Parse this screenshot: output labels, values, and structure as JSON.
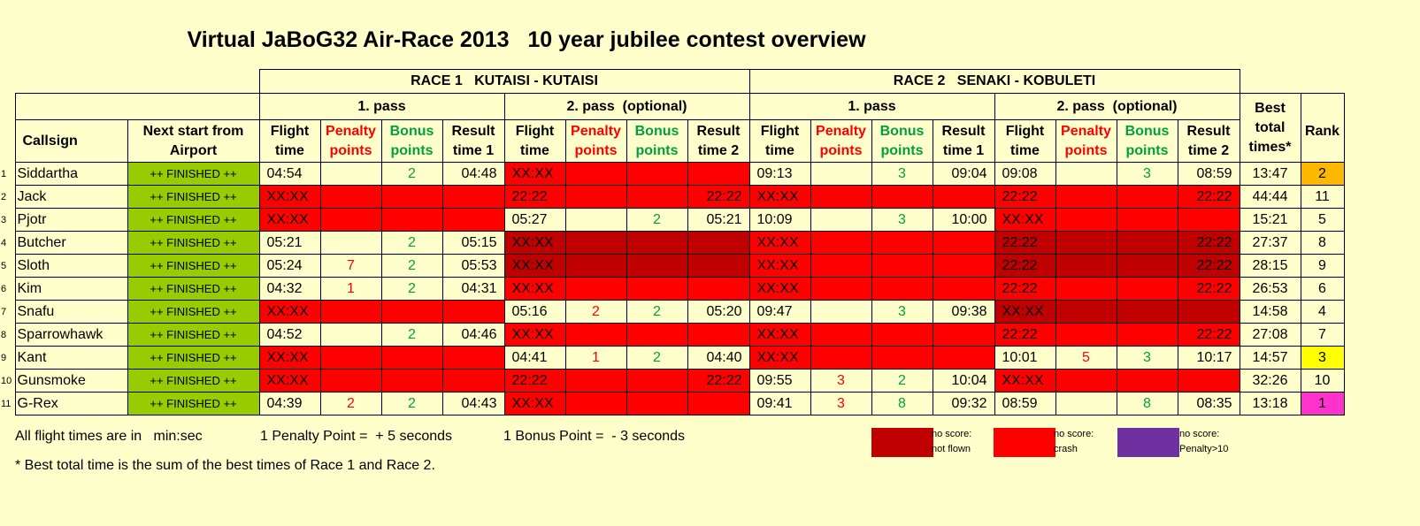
{
  "title": "Virtual JaBoG32 Air-Race 2013   10 year jubilee contest overview",
  "races": [
    {
      "label": "RACE 1   KUTAISI - KUTAISI",
      "pass1": "1. pass",
      "pass2": "2. pass  (optional)"
    },
    {
      "label": "RACE 2   SENAKI - KOBULETI",
      "pass1": "1. pass",
      "pass2": "2. pass  (optional)"
    }
  ],
  "columns": {
    "callsign": "Callsign",
    "next_start_1": "Next start from",
    "next_start_2": "Airport",
    "flight_1": "Flight",
    "flight_2": "time",
    "penalty_1": "Penalty",
    "penalty_2": "points",
    "bonus_1": "Bonus",
    "bonus_2": "points",
    "result1_1": "Result",
    "result1_2": "time 1",
    "result2_1": "Result",
    "result2_2": "time 2",
    "best_1": "Best",
    "best_2": "total",
    "best_3": "times*",
    "rank": "Rank"
  },
  "colors": {
    "background": "#FFFFCC",
    "finished": "#99CC00",
    "crash": "#FF0000",
    "not_flown": "#C00000",
    "penalty_over_10": "#7030A0",
    "rank_gold": "#FFB800",
    "rank_yellow": "#FFFF00",
    "rank_magenta": "#FF33CC"
  },
  "rows": [
    {
      "n": "1",
      "callsign": "Siddartha",
      "next": "++ FINISHED ++",
      "cells": [
        [
          "04:54",
          ""
        ],
        [
          "",
          ""
        ],
        [
          "2",
          ""
        ],
        [
          "04:48",
          ""
        ],
        [
          "XX:XX",
          "crash"
        ],
        [
          "",
          "crash"
        ],
        [
          "",
          "crash"
        ],
        [
          "",
          "crash"
        ],
        [
          "09:13",
          ""
        ],
        [
          "",
          ""
        ],
        [
          "3",
          ""
        ],
        [
          "09:04",
          ""
        ],
        [
          "09:08",
          ""
        ],
        [
          "",
          ""
        ],
        [
          "3",
          ""
        ],
        [
          "08:59",
          ""
        ]
      ],
      "best": "13:47",
      "rank": "2",
      "rank_style": "rk-gold"
    },
    {
      "n": "2",
      "callsign": "Jack",
      "next": "++ FINISHED ++",
      "cells": [
        [
          "XX:XX",
          "crash"
        ],
        [
          "",
          "crash"
        ],
        [
          "",
          "crash"
        ],
        [
          "",
          "crash"
        ],
        [
          "22:22",
          "crash"
        ],
        [
          "",
          "crash"
        ],
        [
          "",
          "crash"
        ],
        [
          "22:22",
          "crash"
        ],
        [
          "XX:XX",
          "crash"
        ],
        [
          "",
          "crash"
        ],
        [
          "",
          "crash"
        ],
        [
          "",
          "crash"
        ],
        [
          "22:22",
          "crash"
        ],
        [
          "",
          "crash"
        ],
        [
          "",
          "crash"
        ],
        [
          "22:22",
          "crash"
        ]
      ],
      "best": "44:44",
      "rank": "11",
      "rank_style": ""
    },
    {
      "n": "3",
      "callsign": "Pjotr",
      "next": "++ FINISHED ++",
      "cells": [
        [
          "XX:XX",
          "crash"
        ],
        [
          "",
          "crash"
        ],
        [
          "",
          "crash"
        ],
        [
          "",
          "crash"
        ],
        [
          "05:27",
          ""
        ],
        [
          "",
          ""
        ],
        [
          "2",
          ""
        ],
        [
          "05:21",
          ""
        ],
        [
          "10:09",
          ""
        ],
        [
          "",
          ""
        ],
        [
          "3",
          ""
        ],
        [
          "10:00",
          ""
        ],
        [
          "XX:XX",
          "crash"
        ],
        [
          "",
          "crash"
        ],
        [
          "",
          "crash"
        ],
        [
          "",
          "crash"
        ]
      ],
      "best": "15:21",
      "rank": "5",
      "rank_style": ""
    },
    {
      "n": "4",
      "callsign": "Butcher",
      "next": "++ FINISHED ++",
      "cells": [
        [
          "05:21",
          ""
        ],
        [
          "",
          ""
        ],
        [
          "2",
          ""
        ],
        [
          "05:15",
          ""
        ],
        [
          "XX:XX",
          "nf"
        ],
        [
          "",
          "nf"
        ],
        [
          "",
          "nf"
        ],
        [
          "",
          "nf"
        ],
        [
          "XX:XX",
          "crash"
        ],
        [
          "",
          "crash"
        ],
        [
          "",
          "crash"
        ],
        [
          "",
          "crash"
        ],
        [
          "22:22",
          "nf"
        ],
        [
          "",
          "nf"
        ],
        [
          "",
          "nf"
        ],
        [
          "22:22",
          "nf"
        ]
      ],
      "best": "27:37",
      "rank": "8",
      "rank_style": ""
    },
    {
      "n": "5",
      "callsign": "Sloth",
      "next": "++ FINISHED ++",
      "cells": [
        [
          "05:24",
          ""
        ],
        [
          "7",
          ""
        ],
        [
          "2",
          ""
        ],
        [
          "05:53",
          ""
        ],
        [
          "XX:XX",
          "nf"
        ],
        [
          "",
          "nf"
        ],
        [
          "",
          "nf"
        ],
        [
          "",
          "nf"
        ],
        [
          "XX:XX",
          "crash"
        ],
        [
          "",
          "crash"
        ],
        [
          "",
          "crash"
        ],
        [
          "",
          "crash"
        ],
        [
          "22:22",
          "nf"
        ],
        [
          "",
          "nf"
        ],
        [
          "",
          "nf"
        ],
        [
          "22:22",
          "nf"
        ]
      ],
      "best": "28:15",
      "rank": "9",
      "rank_style": ""
    },
    {
      "n": "6",
      "callsign": "Kim",
      "next": "++ FINISHED ++",
      "cells": [
        [
          "04:32",
          ""
        ],
        [
          "1",
          ""
        ],
        [
          "2",
          ""
        ],
        [
          "04:31",
          ""
        ],
        [
          "XX:XX",
          "crash"
        ],
        [
          "",
          "crash"
        ],
        [
          "",
          "crash"
        ],
        [
          "",
          "crash"
        ],
        [
          "XX:XX",
          "crash"
        ],
        [
          "",
          "crash"
        ],
        [
          "",
          "crash"
        ],
        [
          "",
          "crash"
        ],
        [
          "22:22",
          "crash"
        ],
        [
          "",
          "crash"
        ],
        [
          "",
          "crash"
        ],
        [
          "22:22",
          "crash"
        ]
      ],
      "best": "26:53",
      "rank": "6",
      "rank_style": ""
    },
    {
      "n": "7",
      "callsign": "Snafu",
      "next": "++ FINISHED ++",
      "cells": [
        [
          "XX:XX",
          "crash"
        ],
        [
          "",
          "crash"
        ],
        [
          "",
          "crash"
        ],
        [
          "",
          "crash"
        ],
        [
          "05:16",
          ""
        ],
        [
          "2",
          ""
        ],
        [
          "2",
          ""
        ],
        [
          "05:20",
          ""
        ],
        [
          "09:47",
          ""
        ],
        [
          "",
          ""
        ],
        [
          "3",
          ""
        ],
        [
          "09:38",
          ""
        ],
        [
          "XX:XX",
          "nf"
        ],
        [
          "",
          "nf"
        ],
        [
          "",
          "nf"
        ],
        [
          "",
          "nf"
        ]
      ],
      "best": "14:58",
      "rank": "4",
      "rank_style": ""
    },
    {
      "n": "8",
      "callsign": "Sparrowhawk",
      "next": "++ FINISHED ++",
      "cells": [
        [
          "04:52",
          ""
        ],
        [
          "",
          ""
        ],
        [
          "2",
          ""
        ],
        [
          "04:46",
          ""
        ],
        [
          "XX:XX",
          "crash"
        ],
        [
          "",
          "crash"
        ],
        [
          "",
          "crash"
        ],
        [
          "",
          "crash"
        ],
        [
          "XX:XX",
          "crash"
        ],
        [
          "",
          "crash"
        ],
        [
          "",
          "crash"
        ],
        [
          "",
          "crash"
        ],
        [
          "22:22",
          "crash"
        ],
        [
          "",
          "crash"
        ],
        [
          "",
          "crash"
        ],
        [
          "22:22",
          "crash"
        ]
      ],
      "best": "27:08",
      "rank": "7",
      "rank_style": ""
    },
    {
      "n": "9",
      "callsign": "Kant",
      "next": "++ FINISHED ++",
      "cells": [
        [
          "XX:XX",
          "crash"
        ],
        [
          "",
          "crash"
        ],
        [
          "",
          "crash"
        ],
        [
          "",
          "crash"
        ],
        [
          "04:41",
          ""
        ],
        [
          "1",
          ""
        ],
        [
          "2",
          ""
        ],
        [
          "04:40",
          ""
        ],
        [
          "XX:XX",
          "crash"
        ],
        [
          "",
          "crash"
        ],
        [
          "",
          "crash"
        ],
        [
          "",
          "crash"
        ],
        [
          "10:01",
          ""
        ],
        [
          "5",
          ""
        ],
        [
          "3",
          ""
        ],
        [
          "10:17",
          ""
        ]
      ],
      "best": "14:57",
      "rank": "3",
      "rank_style": "rk-yel"
    },
    {
      "n": "10",
      "callsign": "Gunsmoke",
      "next": "++ FINISHED ++",
      "cells": [
        [
          "XX:XX",
          "crash"
        ],
        [
          "",
          "crash"
        ],
        [
          "",
          "crash"
        ],
        [
          "",
          "crash"
        ],
        [
          "22:22",
          "crash"
        ],
        [
          "",
          "crash"
        ],
        [
          "",
          "crash"
        ],
        [
          "22:22",
          "crash"
        ],
        [
          "09:55",
          ""
        ],
        [
          "3",
          ""
        ],
        [
          "2",
          ""
        ],
        [
          "10:04",
          ""
        ],
        [
          "XX:XX",
          "crash"
        ],
        [
          "",
          "crash"
        ],
        [
          "",
          "crash"
        ],
        [
          "",
          "crash"
        ]
      ],
      "best": "32:26",
      "rank": "10",
      "rank_style": ""
    },
    {
      "n": "11",
      "callsign": "G-Rex",
      "next": "++ FINISHED ++",
      "cells": [
        [
          "04:39",
          ""
        ],
        [
          "2",
          ""
        ],
        [
          "2",
          ""
        ],
        [
          "04:43",
          ""
        ],
        [
          "XX:XX",
          "crash"
        ],
        [
          "",
          "crash"
        ],
        [
          "",
          "crash"
        ],
        [
          "",
          "crash"
        ],
        [
          "09:41",
          ""
        ],
        [
          "3",
          ""
        ],
        [
          "8",
          ""
        ],
        [
          "09:32",
          ""
        ],
        [
          "08:59",
          ""
        ],
        [
          "",
          ""
        ],
        [
          "8",
          ""
        ],
        [
          "08:35",
          ""
        ]
      ],
      "best": "13:18",
      "rank": "1",
      "rank_style": "rk-mag"
    }
  ],
  "footer": {
    "units": "All flight times are in   min:sec",
    "penalty": "1 Penalty Point =  + 5 seconds",
    "bonus": "1 Bonus Point =  - 3 seconds",
    "note": "* Best total time is the sum of the best times of Race 1 and Race 2."
  },
  "legend": [
    {
      "label": "no score:\nnot flown",
      "color": "#C00000"
    },
    {
      "label": "no score:\ncrash",
      "color": "#FF0000"
    },
    {
      "label": "no score:\nPenalty>10",
      "color": "#7030A0"
    }
  ]
}
